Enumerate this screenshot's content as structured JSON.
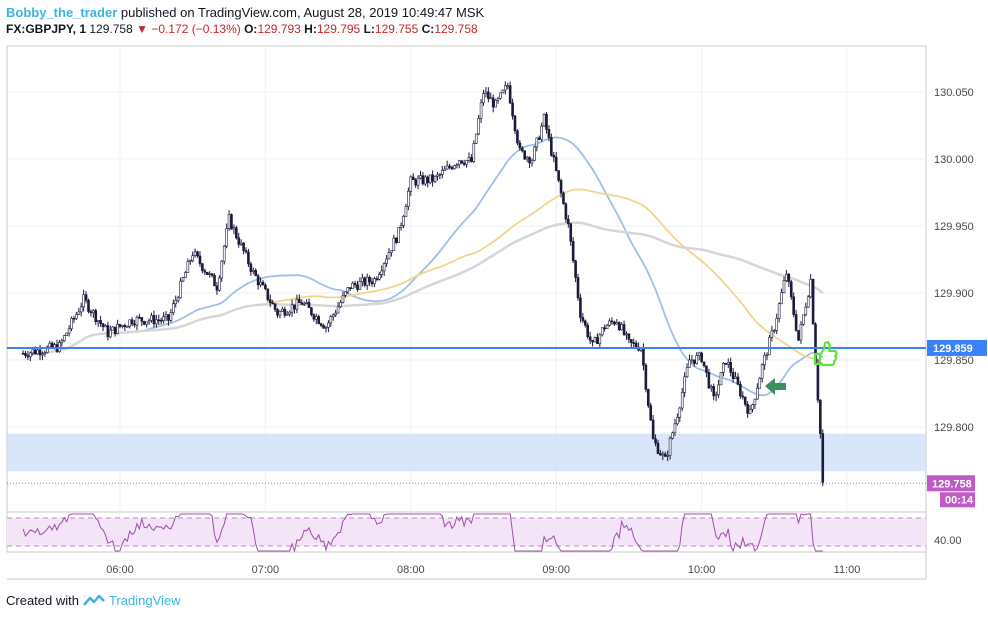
{
  "header": {
    "author": "Bobby_the_trader",
    "published": "published on TradingView.com, August 28, 2019 10:49:47 MSK",
    "symbol": "FX:GBPJPY, 1",
    "last": "129.758",
    "change_arrow": "▼",
    "change": "−0.172 (−0.13%)",
    "o_label": "O:",
    "o_value": "129.793",
    "h_label": "H:",
    "h_value": "129.795",
    "l_label": "L:",
    "l_value": "129.755",
    "c_label": "C:",
    "c_value": "129.758"
  },
  "footer": {
    "created_with": "Created with",
    "brand": "TradingView"
  },
  "colors": {
    "candle_up": "#ffffff",
    "candle_down": "#1b1b3a",
    "ma_fast": "#9ebfea",
    "ma_mid": "#f2d48a",
    "ma_slow": "#d6d6d6",
    "level_line": "#3b82f6",
    "zone": "#cfe0f7",
    "last_price": "#c05ac4",
    "rsi_line": "#9c4fa8",
    "rsi_band": "#f3e5f7",
    "signal_arrow": "#3e8e5e",
    "thumb": "#5de33c"
  },
  "chart_data": {
    "type": "candlestick",
    "title": "",
    "x_ticks": [
      "06:00",
      "07:00",
      "08:00",
      "09:00",
      "10:00",
      "11:00"
    ],
    "y_ticks": [
      "130.050",
      "130.000",
      "129.950",
      "129.900",
      "129.850",
      "129.800"
    ],
    "ylim": [
      129.745,
      130.075
    ],
    "horizontal_level": {
      "value": 129.859,
      "label": "129.859"
    },
    "zone": {
      "from": 129.767,
      "to": 129.795
    },
    "last_price": {
      "value": 129.758,
      "label": "129.758",
      "countdown": "00:14"
    },
    "close_approx": [
      {
        "t": "05:20",
        "c": 129.855
      },
      {
        "t": "05:35",
        "c": 129.86
      },
      {
        "t": "05:45",
        "c": 129.895
      },
      {
        "t": "05:55",
        "c": 129.87
      },
      {
        "t": "06:05",
        "c": 129.88
      },
      {
        "t": "06:20",
        "c": 129.88
      },
      {
        "t": "06:30",
        "c": 129.93
      },
      {
        "t": "06:40",
        "c": 129.905
      },
      {
        "t": "06:45",
        "c": 129.955
      },
      {
        "t": "06:55",
        "c": 129.915
      },
      {
        "t": "07:05",
        "c": 129.885
      },
      {
        "t": "07:15",
        "c": 129.893
      },
      {
        "t": "07:25",
        "c": 129.875
      },
      {
        "t": "07:35",
        "c": 129.905
      },
      {
        "t": "07:45",
        "c": 129.91
      },
      {
        "t": "07:55",
        "c": 129.945
      },
      {
        "t": "08:00",
        "c": 129.983
      },
      {
        "t": "08:10",
        "c": 129.985
      },
      {
        "t": "08:20",
        "c": 130.0
      },
      {
        "t": "08:25",
        "c": 129.998
      },
      {
        "t": "08:30",
        "c": 130.05
      },
      {
        "t": "08:35",
        "c": 130.04
      },
      {
        "t": "08:40",
        "c": 130.055
      },
      {
        "t": "08:45",
        "c": 130.005
      },
      {
        "t": "08:50",
        "c": 130.0
      },
      {
        "t": "08:55",
        "c": 130.03
      },
      {
        "t": "09:00",
        "c": 129.99
      },
      {
        "t": "09:05",
        "c": 129.95
      },
      {
        "t": "09:10",
        "c": 129.885
      },
      {
        "t": "09:15",
        "c": 129.86
      },
      {
        "t": "09:20",
        "c": 129.875
      },
      {
        "t": "09:25",
        "c": 129.88
      },
      {
        "t": "09:30",
        "c": 129.862
      },
      {
        "t": "09:35",
        "c": 129.86
      },
      {
        "t": "09:40",
        "c": 129.79
      },
      {
        "t": "09:45",
        "c": 129.775
      },
      {
        "t": "09:50",
        "c": 129.81
      },
      {
        "t": "09:55",
        "c": 129.85
      },
      {
        "t": "10:00",
        "c": 129.852
      },
      {
        "t": "10:05",
        "c": 129.82
      },
      {
        "t": "10:10",
        "c": 129.85
      },
      {
        "t": "10:15",
        "c": 129.83
      },
      {
        "t": "10:20",
        "c": 129.81
      },
      {
        "t": "10:25",
        "c": 129.845
      },
      {
        "t": "10:30",
        "c": 129.875
      },
      {
        "t": "10:35",
        "c": 129.915
      },
      {
        "t": "10:40",
        "c": 129.865
      },
      {
        "t": "10:45",
        "c": 129.91
      },
      {
        "t": "10:47",
        "c": 129.85
      },
      {
        "t": "10:49",
        "c": 129.795
      },
      {
        "t": "10:50",
        "c": 129.758
      }
    ],
    "moving_averages": [
      "fast",
      "mid",
      "slow"
    ],
    "rsi": {
      "y_tick": "40.00"
    }
  }
}
